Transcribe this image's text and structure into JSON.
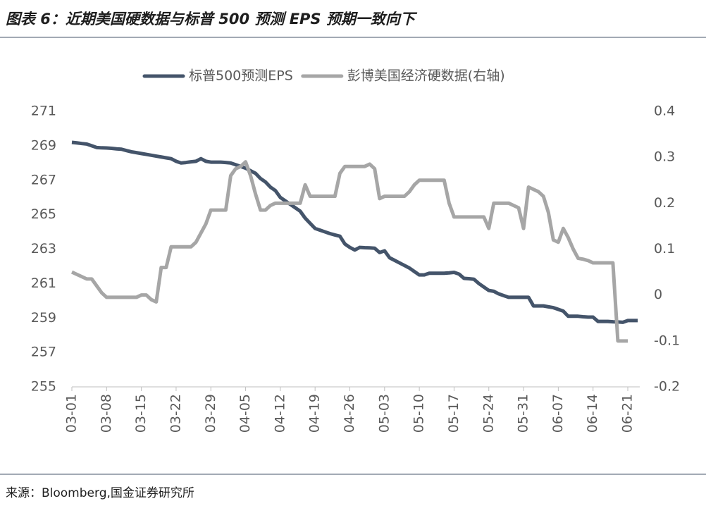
{
  "chart_data": {
    "type": "line",
    "title": "图表 6：近期美国硬数据与标普 500 预测 EPS 预期一致向下",
    "categories": [
      "03-01",
      null,
      null,
      null,
      null,
      null,
      null,
      "03-08",
      null,
      null,
      null,
      null,
      null,
      null,
      "03-15",
      null,
      null,
      null,
      null,
      null,
      null,
      "03-22",
      null,
      null,
      null,
      null,
      null,
      null,
      "03-29",
      null,
      null,
      null,
      null,
      null,
      null,
      "04-05",
      null,
      null,
      null,
      null,
      null,
      null,
      "04-12",
      null,
      null,
      null,
      null,
      null,
      null,
      "04-19",
      null,
      null,
      null,
      null,
      null,
      null,
      "04-26",
      null,
      null,
      null,
      null,
      null,
      null,
      "05-03",
      null,
      null,
      null,
      null,
      null,
      null,
      "05-10",
      null,
      null,
      null,
      null,
      null,
      null,
      "05-17",
      null,
      null,
      null,
      null,
      null,
      null,
      "05-24",
      null,
      null,
      null,
      null,
      null,
      null,
      "05-31",
      null,
      null,
      null,
      null,
      null,
      null,
      "06-07",
      null,
      null,
      null,
      null,
      null,
      null,
      "06-14",
      null,
      null,
      null,
      null,
      null,
      null,
      "06-21",
      null,
      null
    ],
    "series": [
      {
        "name": "标普500预测EPS",
        "color": "#44546a",
        "values": [
          269.2,
          269.17,
          269.13,
          269.1,
          269.0,
          268.9,
          268.88,
          268.87,
          268.85,
          268.82,
          268.8,
          268.72,
          268.65,
          268.6,
          268.55,
          268.5,
          268.45,
          268.4,
          268.35,
          268.3,
          268.25,
          268.1,
          268.0,
          268.03,
          268.07,
          268.1,
          268.25,
          268.1,
          268.05,
          268.05,
          268.05,
          268.03,
          268.0,
          267.9,
          267.8,
          267.7,
          267.55,
          267.4,
          267.1,
          266.9,
          266.6,
          266.4,
          266.0,
          265.8,
          265.6,
          265.4,
          265.2,
          264.8,
          264.5,
          264.2,
          264.1,
          264.0,
          263.9,
          263.82,
          263.75,
          263.3,
          263.1,
          262.95,
          263.1,
          263.08,
          263.07,
          263.05,
          262.8,
          262.9,
          262.5,
          262.35,
          262.2,
          262.05,
          261.9,
          261.7,
          261.5,
          261.5,
          261.6,
          261.6,
          261.6,
          261.6,
          261.62,
          261.65,
          261.55,
          261.3,
          261.28,
          261.25,
          261.0,
          260.8,
          260.6,
          260.55,
          260.4,
          260.3,
          260.2,
          260.2,
          260.2,
          260.2,
          260.2,
          259.7,
          259.7,
          259.7,
          259.65,
          259.6,
          259.5,
          259.4,
          259.1,
          259.1,
          259.1,
          259.07,
          259.05,
          259.05,
          258.8,
          258.8,
          258.8,
          258.78,
          258.77,
          258.75,
          258.85,
          258.85,
          258.85
        ]
      },
      {
        "name": "彭博美国经济硬数据(右轴)",
        "color": "#a6a6a6",
        "axis": "y2",
        "values": [
          0.05,
          0.045,
          0.04,
          0.035,
          0.035,
          0.02,
          0.005,
          -0.005,
          -0.005,
          -0.005,
          -0.005,
          -0.005,
          -0.005,
          -0.005,
          0.0,
          0.0,
          -0.01,
          -0.015,
          0.06,
          0.06,
          0.105,
          0.105,
          0.105,
          0.105,
          0.105,
          0.115,
          0.135,
          0.155,
          0.185,
          0.185,
          0.185,
          0.185,
          0.26,
          0.275,
          0.28,
          0.29,
          0.26,
          0.22,
          0.185,
          0.185,
          0.195,
          0.2,
          0.2,
          0.2,
          0.2,
          0.2,
          0.2,
          0.24,
          0.215,
          0.215,
          0.215,
          0.215,
          0.215,
          0.215,
          0.265,
          0.28,
          0.28,
          0.28,
          0.28,
          0.28,
          0.285,
          0.275,
          0.21,
          0.215,
          0.215,
          0.215,
          0.215,
          0.215,
          0.225,
          0.24,
          0.25,
          0.25,
          0.25,
          0.25,
          0.25,
          0.25,
          0.2,
          0.17,
          0.17,
          0.17,
          0.17,
          0.17,
          0.17,
          0.17,
          0.145,
          0.2,
          0.2,
          0.2,
          0.2,
          0.195,
          0.19,
          0.145,
          0.235,
          0.23,
          0.225,
          0.215,
          0.18,
          0.12,
          0.115,
          0.145,
          0.125,
          0.1,
          0.08,
          0.078,
          0.075,
          0.07,
          0.07,
          0.07,
          0.07,
          0.07,
          -0.1,
          -0.1,
          -0.1,
          null,
          null
        ]
      }
    ],
    "ylim": [
      255,
      271
    ],
    "yticks": [
      255,
      257,
      259,
      261,
      263,
      265,
      267,
      269,
      271
    ],
    "y2lim": [
      -0.2,
      0.4
    ],
    "y2ticks": [
      -0.2,
      -0.1,
      0,
      0.1,
      0.2,
      0.3,
      0.4
    ],
    "legend": "top",
    "grid": false
  },
  "source": "来源：Bloomberg,国金证券研究所"
}
